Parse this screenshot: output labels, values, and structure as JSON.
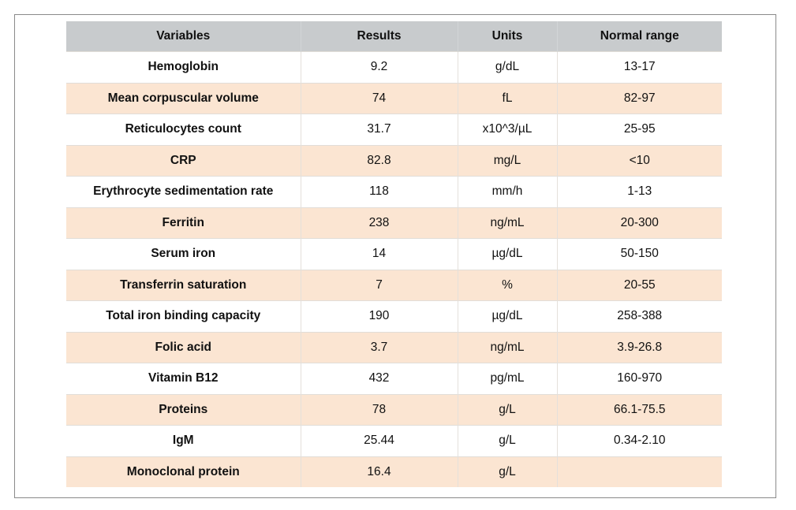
{
  "table": {
    "headers": [
      "Variables",
      "Results",
      "Units",
      "Normal range"
    ],
    "rows": [
      {
        "variable": "Hemoglobin",
        "result": "9.2",
        "unit": "g/dL",
        "range": "13-17"
      },
      {
        "variable": "Mean corpuscular volume",
        "result": "74",
        "unit": "fL",
        "range": "82-97"
      },
      {
        "variable": "Reticulocytes count",
        "result": "31.7",
        "unit": "x10^3/µL",
        "range": "25-95"
      },
      {
        "variable": "CRP",
        "result": "82.8",
        "unit": "mg/L",
        "range": "<10"
      },
      {
        "variable": "Erythrocyte sedimentation rate",
        "result": "118",
        "unit": "mm/h",
        "range": "1-13"
      },
      {
        "variable": "Ferritin",
        "result": "238",
        "unit": "ng/mL",
        "range": "20-300"
      },
      {
        "variable": "Serum iron",
        "result": "14",
        "unit": "µg/dL",
        "range": "50-150"
      },
      {
        "variable": "Transferrin saturation",
        "result": "7",
        "unit": "%",
        "range": "20-55"
      },
      {
        "variable": "Total iron binding capacity",
        "result": "190",
        "unit": "µg/dL",
        "range": "258-388"
      },
      {
        "variable": "Folic acid",
        "result": "3.7",
        "unit": "ng/mL",
        "range": "3.9-26.8"
      },
      {
        "variable": "Vitamin B12",
        "result": "432",
        "unit": "pg/mL",
        "range": "160-970"
      },
      {
        "variable": "Proteins",
        "result": "78",
        "unit": "g/L",
        "range": "66.1-75.5"
      },
      {
        "variable": "IgM",
        "result": "25.44",
        "unit": "g/L",
        "range": "0.34-2.10"
      },
      {
        "variable": "Monoclonal protein",
        "result": "16.4",
        "unit": "g/L",
        "range": ""
      }
    ]
  },
  "colors": {
    "header_background": "#c8cbcd",
    "stripe_background": "#fbe5d2",
    "row_background": "#ffffff"
  }
}
